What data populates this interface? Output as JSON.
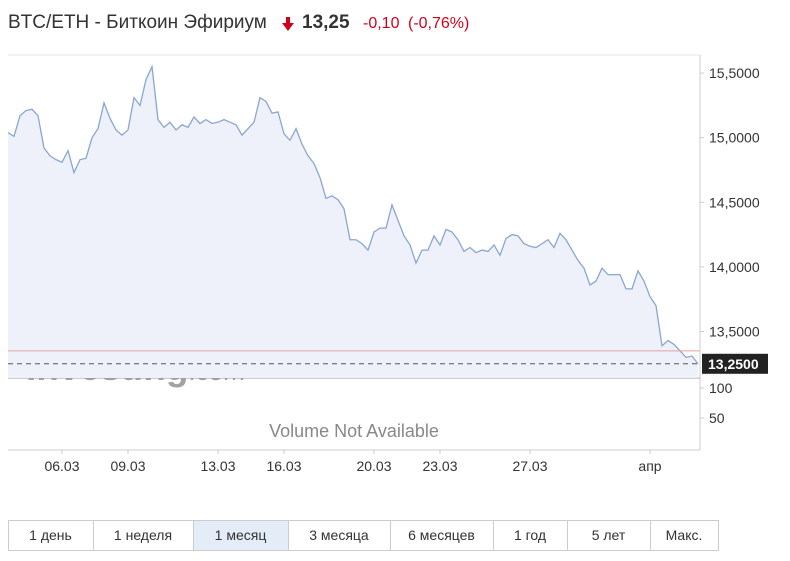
{
  "header": {
    "title": "BTC/ETH - Биткоин Эфириум",
    "price": "13,25",
    "change": "-0,10",
    "change_pct": "(-0,76%)"
  },
  "chart_data": {
    "type": "line",
    "categories": [
      null,
      null,
      null,
      null,
      null,
      null,
      null,
      null,
      null,
      "06.03",
      null,
      null,
      null,
      null,
      null,
      null,
      null,
      null,
      null,
      null,
      "09.03",
      null,
      null,
      null,
      null,
      null,
      null,
      null,
      null,
      null,
      null,
      null,
      null,
      null,
      null,
      "13.03",
      null,
      null,
      null,
      null,
      null,
      null,
      null,
      null,
      null,
      null,
      "16.03",
      null,
      null,
      null,
      null,
      null,
      null,
      null,
      null,
      null,
      null,
      null,
      null,
      null,
      null,
      "20.03",
      null,
      null,
      null,
      null,
      null,
      null,
      null,
      null,
      null,
      null,
      "23.03",
      null,
      null,
      null,
      null,
      null,
      null,
      null,
      null,
      null,
      null,
      null,
      null,
      null,
      null,
      "27.03",
      null,
      null,
      null,
      null,
      null,
      null,
      null,
      null,
      null,
      null,
      null,
      null,
      null,
      null,
      null,
      null,
      null,
      null,
      null,
      "апр",
      null,
      null,
      null,
      null,
      null,
      null,
      null,
      null
    ],
    "values": [
      15.04,
      15.01,
      15.17,
      15.21,
      15.22,
      15.17,
      14.92,
      14.86,
      14.83,
      14.81,
      14.9,
      14.73,
      14.83,
      14.84,
      15.0,
      15.07,
      15.27,
      15.15,
      15.06,
      15.02,
      15.06,
      15.31,
      15.25,
      15.45,
      15.55,
      15.14,
      15.08,
      15.12,
      15.06,
      15.1,
      15.08,
      15.16,
      15.11,
      15.14,
      15.11,
      15.12,
      15.14,
      15.12,
      15.1,
      15.02,
      15.07,
      15.12,
      15.31,
      15.28,
      15.19,
      15.2,
      15.03,
      14.98,
      15.07,
      14.95,
      14.86,
      14.8,
      14.69,
      14.53,
      14.55,
      14.52,
      14.45,
      14.21,
      14.21,
      14.18,
      14.13,
      14.27,
      14.3,
      14.3,
      14.48,
      14.36,
      14.24,
      14.17,
      14.03,
      14.13,
      14.13,
      14.24,
      14.17,
      14.29,
      14.27,
      14.21,
      14.12,
      14.15,
      14.11,
      14.13,
      14.12,
      14.17,
      14.09,
      14.22,
      14.25,
      14.24,
      14.18,
      14.16,
      14.15,
      14.18,
      14.21,
      14.15,
      14.26,
      14.21,
      14.13,
      14.05,
      13.99,
      13.86,
      13.89,
      13.99,
      13.94,
      13.94,
      13.94,
      13.83,
      13.83,
      13.97,
      13.89,
      13.77,
      13.7,
      13.39,
      13.43,
      13.4,
      13.35,
      13.3,
      13.31,
      13.25
    ],
    "color": "#8aa6d0",
    "fill_color": "#eef1f9",
    "ylim": [
      13.14,
      15.64
    ],
    "yticks": [
      {
        "value": 13.5,
        "label": "13,5000"
      },
      {
        "value": 14,
        "label": "14,0000"
      },
      {
        "value": 14.5,
        "label": "14,5000"
      },
      {
        "value": 15,
        "label": "15,0000"
      },
      {
        "value": 15.5,
        "label": "15,5000"
      }
    ],
    "last_price": {
      "value": 13.25,
      "label": "13,2500"
    },
    "prev_close": 13.35,
    "volume": {
      "ylim": [
        0,
        116.7
      ],
      "yticks": [
        50,
        100
      ],
      "note": "Volume Not Available"
    },
    "watermark": {
      "brand": "Investing",
      "domain": ".com"
    }
  },
  "period_buttons": [
    "1 день",
    "1 неделя",
    "1 месяц",
    "3 месяца",
    "6 месяцев",
    "1 год",
    "5 лет",
    "Макс."
  ],
  "active_period": 2
}
